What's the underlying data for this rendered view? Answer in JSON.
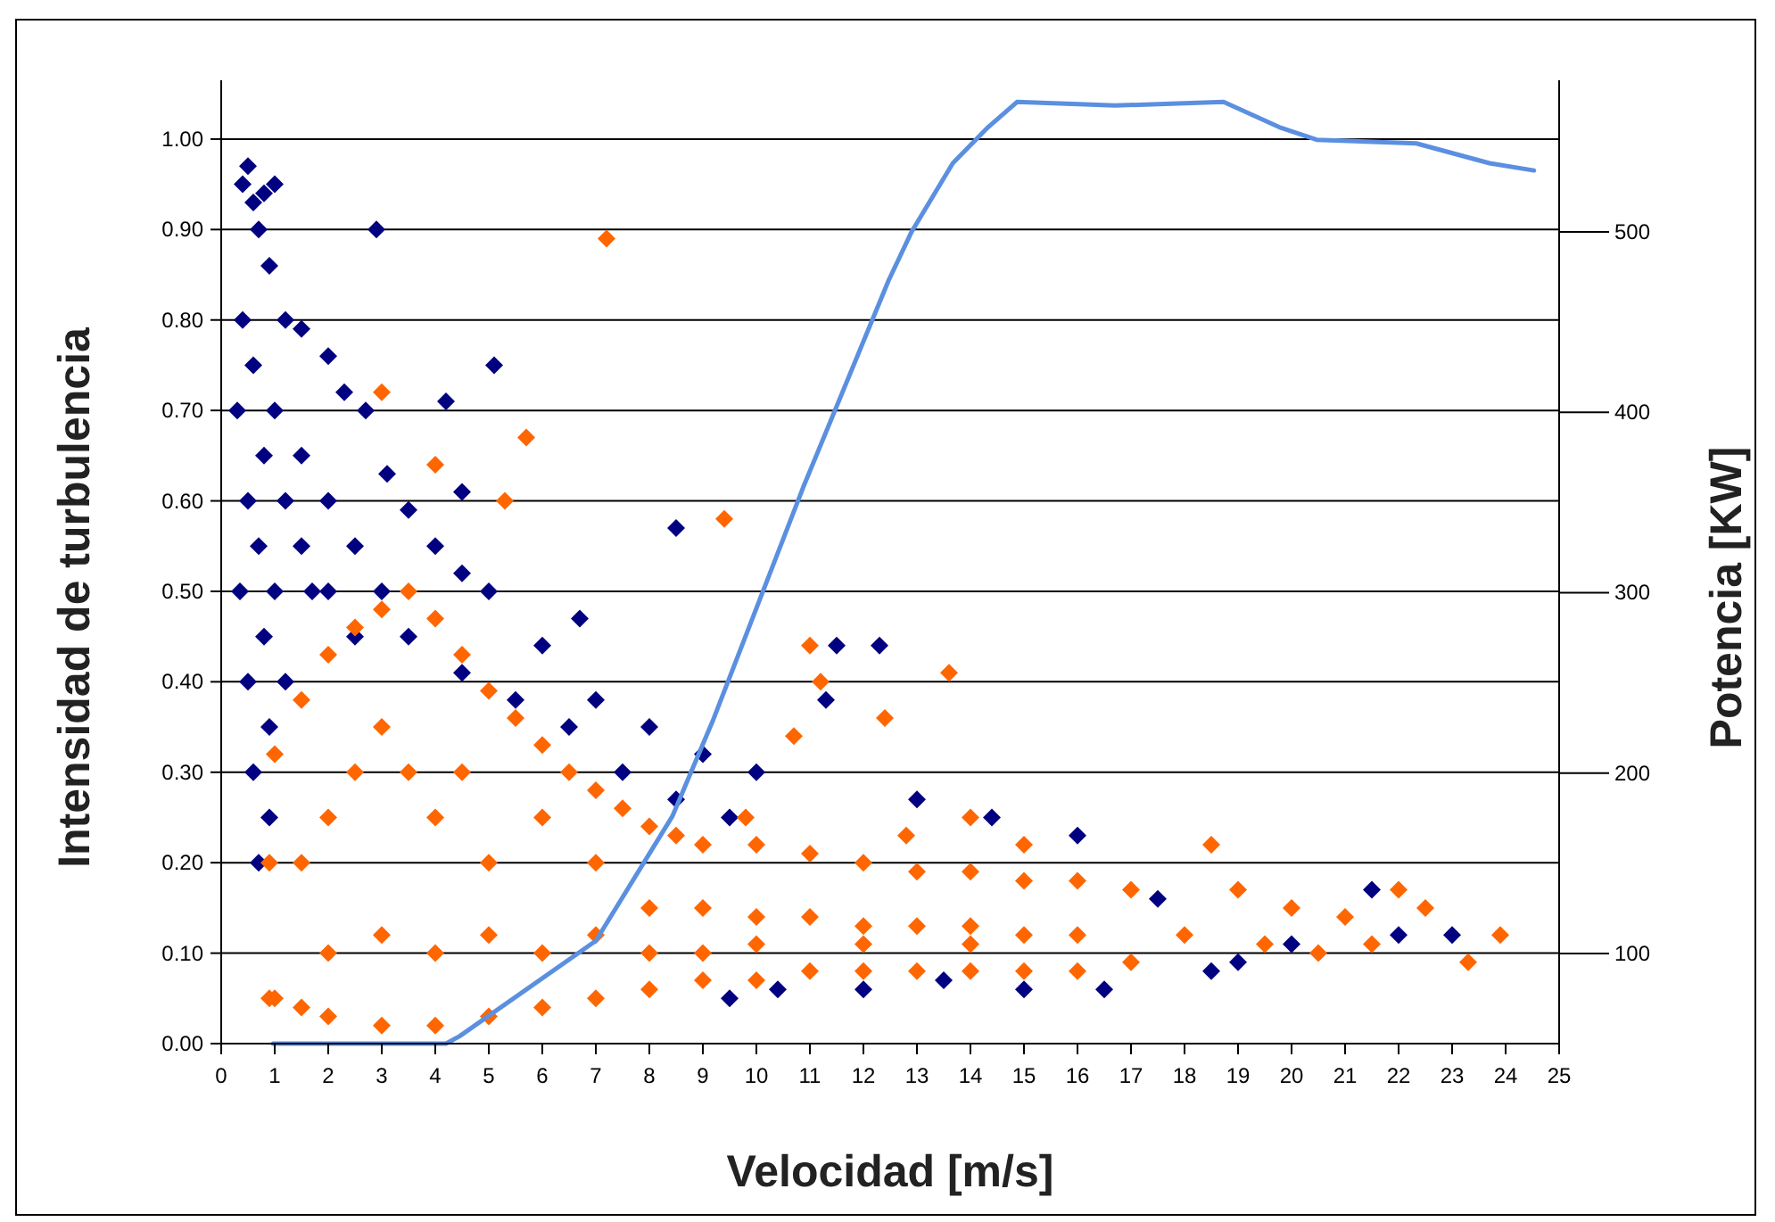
{
  "chart_data": {
    "type": "scatter",
    "xlabel": "Velocidad [m/s]",
    "ylabel": "Intensidad de turbulencia",
    "y2label": "Potencia [KW]",
    "xlim": [
      0,
      25
    ],
    "xticks": [
      0,
      1,
      2,
      3,
      4,
      5,
      6,
      7,
      8,
      9,
      10,
      11,
      12,
      13,
      14,
      15,
      16,
      17,
      18,
      19,
      20,
      21,
      22,
      23,
      24,
      25
    ],
    "ylim": [
      0,
      1.065
    ],
    "yticks": [
      {
        "value": 0,
        "label": "0.00"
      },
      {
        "value": 0.1,
        "label": "0.10"
      },
      {
        "value": 0.2,
        "label": "0.20"
      },
      {
        "value": 0.3,
        "label": "0.30"
      },
      {
        "value": 0.4,
        "label": "0.40"
      },
      {
        "value": 0.5,
        "label": "0.50"
      },
      {
        "value": 0.6,
        "label": "0.60"
      },
      {
        "value": 0.7,
        "label": "0.70"
      },
      {
        "value": 0.8,
        "label": "0.80"
      },
      {
        "value": 0.9,
        "label": "0.90"
      },
      {
        "value": 1,
        "label": "1.00"
      }
    ],
    "y2lim": [
      50,
      584
    ],
    "y2ticks": [
      100,
      200,
      300,
      400,
      500
    ],
    "grid": "y",
    "marker": "diamond",
    "series": [
      {
        "color": "#000080",
        "x": [
          0.4,
          0.5,
          0.6,
          0.7,
          0.8,
          1,
          0.9,
          1.2,
          1.5,
          2,
          2.3,
          2.9,
          2.7,
          3.1,
          3.5,
          4,
          4.5,
          5,
          5.1,
          4.2,
          4.5,
          8.5,
          6,
          7,
          6.7,
          8,
          9,
          10,
          11.5,
          12.3,
          11.3,
          13,
          14.4,
          16,
          21.5,
          22,
          20,
          17.5,
          19,
          18.5,
          15,
          12,
          9.5,
          10.4,
          13.5,
          16.5,
          23,
          0.3,
          0.35,
          0.4,
          0.5,
          0.5,
          0.6,
          0.6,
          0.7,
          0.7,
          0.8,
          0.8,
          0.9,
          0.9,
          1,
          1,
          1.2,
          1.2,
          1.5,
          1.5,
          1.7,
          2,
          2,
          2.5,
          2.5,
          3,
          3.5,
          4.5,
          5.5,
          6.5,
          7.5,
          8.5,
          9.5
        ],
        "values": [
          0.95,
          0.97,
          0.93,
          0.9,
          0.94,
          0.95,
          0.86,
          0.8,
          0.79,
          0.76,
          0.72,
          0.9,
          0.7,
          0.63,
          0.59,
          0.55,
          0.52,
          0.5,
          0.75,
          0.71,
          0.61,
          0.57,
          0.44,
          0.38,
          0.47,
          0.35,
          0.32,
          0.3,
          0.44,
          0.44,
          0.38,
          0.27,
          0.25,
          0.23,
          0.17,
          0.12,
          0.11,
          0.16,
          0.09,
          0.08,
          0.06,
          0.06,
          0.05,
          0.06,
          0.07,
          0.06,
          0.12,
          0.7,
          0.5,
          0.8,
          0.6,
          0.4,
          0.75,
          0.3,
          0.55,
          0.2,
          0.65,
          0.45,
          0.35,
          0.25,
          0.7,
          0.5,
          0.6,
          0.4,
          0.65,
          0.55,
          0.5,
          0.6,
          0.5,
          0.55,
          0.45,
          0.5,
          0.45,
          0.41,
          0.38,
          0.35,
          0.3,
          0.27,
          0.25
        ]
      },
      {
        "color": "#ff6600",
        "x": [
          0.9,
          1,
          1.5,
          2,
          2.5,
          3,
          3.5,
          4,
          4.5,
          5,
          5.5,
          6,
          6.5,
          7,
          7.5,
          8,
          8.5,
          9,
          10,
          11,
          12,
          13,
          14,
          15,
          16,
          17,
          1,
          1.5,
          2,
          3,
          4,
          5,
          6,
          7,
          8,
          9,
          10,
          11,
          12,
          13,
          14,
          15,
          16,
          17,
          1.5,
          2,
          2.5,
          3,
          3.5,
          4,
          4.5,
          5,
          6,
          7,
          8,
          9,
          10,
          11,
          12,
          13,
          14,
          15,
          16,
          2,
          3,
          4,
          5,
          6,
          7,
          8,
          9,
          10,
          12,
          14,
          7.2,
          3,
          4,
          5.7,
          9.4,
          5.3,
          11,
          11.2,
          12.4,
          13.6,
          10.7,
          14,
          15,
          18.5,
          19,
          20,
          21,
          22,
          22.5,
          23.3,
          23.9,
          18,
          19.5,
          20.5,
          21.5,
          0.9,
          9.8,
          12.8
        ],
        "values": [
          0.2,
          0.32,
          0.38,
          0.43,
          0.46,
          0.48,
          0.5,
          0.47,
          0.43,
          0.39,
          0.36,
          0.33,
          0.3,
          0.28,
          0.26,
          0.24,
          0.23,
          0.22,
          0.22,
          0.21,
          0.2,
          0.19,
          0.19,
          0.18,
          0.18,
          0.17,
          0.05,
          0.04,
          0.03,
          0.02,
          0.02,
          0.03,
          0.04,
          0.05,
          0.06,
          0.07,
          0.07,
          0.08,
          0.08,
          0.08,
          0.08,
          0.08,
          0.08,
          0.09,
          0.2,
          0.25,
          0.3,
          0.35,
          0.3,
          0.25,
          0.3,
          0.2,
          0.25,
          0.2,
          0.15,
          0.15,
          0.14,
          0.14,
          0.13,
          0.13,
          0.13,
          0.12,
          0.12,
          0.1,
          0.12,
          0.1,
          0.12,
          0.1,
          0.12,
          0.1,
          0.1,
          0.11,
          0.11,
          0.11,
          0.89,
          0.72,
          0.64,
          0.67,
          0.58,
          0.6,
          0.44,
          0.4,
          0.36,
          0.41,
          0.34,
          0.25,
          0.22,
          0.22,
          0.17,
          0.15,
          0.14,
          0.17,
          0.15,
          0.09,
          0.12,
          0.12,
          0.11,
          0.1,
          0.11,
          0.05,
          0.25,
          0.23
        ]
      },
      {
        "type": "line",
        "axis": "y2",
        "marker": "none",
        "color": "#5b8fe0",
        "x": [
          0.97,
          4.2,
          4.45,
          7.0,
          8.43,
          9.2,
          10.87,
          12.47,
          12.9,
          13.67,
          14.33,
          14.87,
          16.7,
          18.73,
          19.77,
          20.47,
          22.33,
          23.7,
          24.53
        ],
        "values": [
          50,
          50,
          54,
          107,
          176,
          230,
          358,
          473,
          500,
          538,
          558,
          572,
          570,
          572,
          558,
          551,
          549,
          538,
          534
        ]
      }
    ]
  }
}
